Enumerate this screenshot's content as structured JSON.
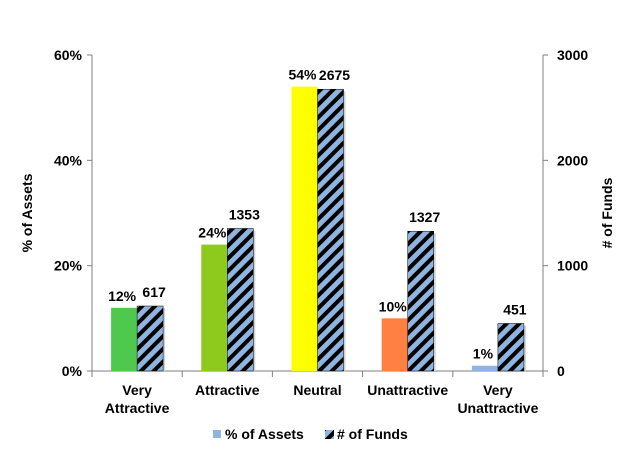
{
  "chart_data": {
    "type": "bar",
    "categories": [
      [
        "Very",
        "Attractive"
      ],
      [
        "Attractive"
      ],
      [
        "Neutral"
      ],
      [
        "Unattractive"
      ],
      [
        "Very",
        "Unattractive"
      ]
    ],
    "series": [
      {
        "name": "% of Assets",
        "axis": "left",
        "values": [
          12,
          24,
          54,
          10,
          1
        ],
        "labels": [
          "12%",
          "24%",
          "54%",
          "10%",
          "1%"
        ],
        "colors": [
          "#4ec94e",
          "#8ec91e",
          "#ffff00",
          "#ff8040",
          "#8fb4e0"
        ],
        "legend_color": "#8fb4e0"
      },
      {
        "name": "# of Funds",
        "axis": "right",
        "values": [
          617,
          1353,
          2675,
          1327,
          451
        ],
        "labels": [
          "617",
          "1353",
          "2675",
          "1327",
          "451"
        ],
        "pattern": "diagonal-hatch",
        "colors": [
          "#8fb4e0",
          "#000000"
        ]
      }
    ],
    "ylabel_left": "% of Assets",
    "ylabel_right": "# of Funds",
    "ylim_left": [
      0,
      60
    ],
    "ylim_right": [
      0,
      3000
    ],
    "yticks_left": [
      "0%",
      "20%",
      "40%",
      "60%"
    ],
    "yticks_right": [
      "0",
      "1000",
      "2000",
      "3000"
    ],
    "grid": false,
    "legend_position": "bottom"
  }
}
